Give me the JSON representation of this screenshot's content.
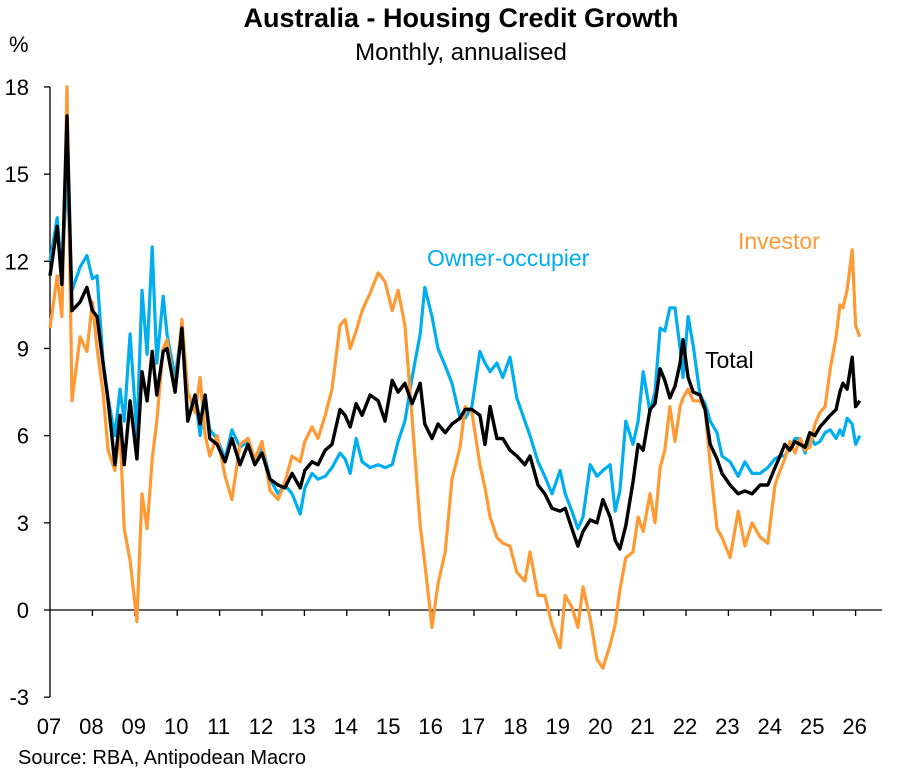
{
  "chart_data": {
    "type": "line",
    "title": "Australia - Housing Credit Growth",
    "subtitle": "Monthly, annualised",
    "ylabel": "%",
    "xlabel": "",
    "source": "Source: RBA, Antipodean Macro",
    "ylim": [
      -3,
      18
    ],
    "yticks": [
      "18",
      "15",
      "12",
      "9",
      "6",
      "3",
      "0",
      "-3"
    ],
    "ytick_values": [
      18,
      15,
      12,
      9,
      6,
      3,
      0,
      -3
    ],
    "xticks": [
      "07",
      "08",
      "09",
      "10",
      "11",
      "12",
      "13",
      "14",
      "15",
      "16",
      "17",
      "18",
      "19",
      "20",
      "21",
      "22",
      "23",
      "24",
      "25",
      "26"
    ],
    "xlim": [
      2007,
      2026
    ],
    "grid": false,
    "legend": "inline labels",
    "x": [
      2007.0,
      2007.17,
      2007.28,
      2007.4,
      2007.52,
      2007.71,
      2007.87,
      2008.0,
      2008.11,
      2008.25,
      2008.37,
      2008.53,
      2008.65,
      2008.75,
      2008.89,
      2009.05,
      2009.17,
      2009.29,
      2009.41,
      2009.52,
      2009.67,
      2009.76,
      2009.95,
      2010.11,
      2010.25,
      2010.42,
      2010.54,
      2010.66,
      2010.77,
      2010.94,
      2011.13,
      2011.29,
      2011.48,
      2011.67,
      2011.83,
      2012.0,
      2012.19,
      2012.38,
      2012.54,
      2012.71,
      2012.9,
      2013.01,
      2013.18,
      2013.32,
      2013.49,
      2013.65,
      2013.84,
      2013.96,
      2014.08,
      2014.22,
      2014.36,
      2014.55,
      2014.74,
      2014.9,
      2015.07,
      2015.21,
      2015.37,
      2015.54,
      2015.73,
      2015.84,
      2016.01,
      2016.15,
      2016.32,
      2016.48,
      2016.67,
      2016.79,
      2016.95,
      2017.14,
      2017.26,
      2017.38,
      2017.54,
      2017.68,
      2017.85,
      2018.01,
      2018.2,
      2018.32,
      2018.51,
      2018.67,
      2018.84,
      2019.03,
      2019.15,
      2019.31,
      2019.45,
      2019.57,
      2019.74,
      2019.9,
      2020.04,
      2020.21,
      2020.33,
      2020.44,
      2020.58,
      2020.75,
      2020.87,
      2020.99,
      2021.15,
      2021.27,
      2021.39,
      2021.5,
      2021.62,
      2021.74,
      2021.86,
      2021.93,
      2022.05,
      2022.17,
      2022.33,
      2022.45,
      2022.57,
      2022.73,
      2022.85,
      2023.04,
      2023.23,
      2023.39,
      2023.56,
      2023.75,
      2023.93,
      2024.1,
      2024.22,
      2024.33,
      2024.45,
      2024.57,
      2024.69,
      2024.81,
      2024.92,
      2025.04,
      2025.16,
      2025.28,
      2025.4,
      2025.54,
      2025.63,
      2025.7,
      2025.8,
      2025.92,
      2026.0,
      2026.1
    ],
    "series": [
      {
        "name": "Owner-occupier",
        "color": "#00AEEF",
        "values": [
          12.0,
          13.5,
          11.5,
          15.0,
          11.0,
          11.8,
          12.2,
          11.4,
          11.5,
          8.6,
          7.3,
          6.0,
          7.6,
          6.5,
          9.5,
          6.0,
          11.0,
          8.8,
          12.5,
          8.5,
          10.8,
          9.5,
          8.0,
          9.7,
          6.5,
          7.4,
          6.0,
          7.3,
          6.2,
          5.9,
          5.2,
          6.2,
          5.6,
          5.8,
          5.0,
          5.7,
          4.5,
          4.0,
          4.3,
          4.0,
          3.3,
          4.2,
          4.7,
          4.5,
          4.6,
          4.9,
          5.4,
          5.2,
          4.7,
          5.9,
          5.1,
          4.9,
          5.0,
          4.9,
          5.0,
          5.8,
          6.5,
          8.0,
          9.5,
          11.1,
          10.1,
          9.0,
          8.4,
          7.8,
          6.6,
          6.6,
          7.0,
          8.9,
          8.5,
          8.2,
          8.5,
          8.0,
          8.7,
          7.3,
          6.5,
          6.0,
          5.1,
          4.6,
          4.0,
          4.8,
          4.0,
          3.4,
          2.8,
          3.2,
          5.0,
          4.6,
          4.8,
          5.0,
          3.4,
          4.1,
          6.5,
          5.7,
          6.5,
          8.2,
          6.8,
          7.5,
          9.7,
          9.6,
          10.4,
          10.4,
          9.0,
          8.0,
          10.1,
          9.1,
          7.4,
          7.1,
          6.5,
          6.1,
          5.3,
          5.1,
          4.6,
          5.1,
          4.7,
          4.7,
          4.9,
          5.2,
          5.3,
          5.3,
          5.6,
          5.9,
          5.9,
          5.4,
          6.0,
          5.7,
          5.8,
          6.1,
          6.2,
          5.9,
          6.2,
          6.0,
          6.6,
          6.4,
          5.7,
          6.0
        ]
      },
      {
        "name": "Investor",
        "color": "#FF9933",
        "values": [
          9.7,
          11.5,
          10.1,
          18.0,
          7.2,
          9.4,
          8.9,
          10.6,
          9.0,
          7.5,
          5.5,
          4.8,
          6.2,
          2.8,
          1.7,
          -0.4,
          4.0,
          2.8,
          5.2,
          6.5,
          9.0,
          9.3,
          7.5,
          10.0,
          7.5,
          6.8,
          8.0,
          6.0,
          5.3,
          6.0,
          4.6,
          3.8,
          5.7,
          5.9,
          5.2,
          5.8,
          4.1,
          3.8,
          4.4,
          5.3,
          5.1,
          5.8,
          6.3,
          5.9,
          6.7,
          7.6,
          9.8,
          10.0,
          9.0,
          9.6,
          10.3,
          10.9,
          11.6,
          11.3,
          10.3,
          11.0,
          9.8,
          6.6,
          2.9,
          1.6,
          -0.6,
          0.9,
          2.0,
          4.5,
          5.6,
          7.0,
          6.8,
          5.0,
          4.2,
          3.2,
          2.5,
          2.3,
          2.2,
          1.3,
          1.0,
          2.0,
          0.5,
          0.5,
          -0.5,
          -1.3,
          0.5,
          0.1,
          -0.6,
          0.8,
          -0.3,
          -1.7,
          -2.0,
          -1.2,
          -0.5,
          0.7,
          1.8,
          2.0,
          3.2,
          2.7,
          4.0,
          3.0,
          4.9,
          5.5,
          7.0,
          5.8,
          7.0,
          7.3,
          7.6,
          7.2,
          7.2,
          6.9,
          5.0,
          2.8,
          2.5,
          1.8,
          3.4,
          2.2,
          3.0,
          2.5,
          2.3,
          4.3,
          4.8,
          5.2,
          5.8,
          5.4,
          5.9,
          5.5,
          5.6,
          6.4,
          6.8,
          7.0,
          8.3,
          9.4,
          10.5,
          10.4,
          11.0,
          12.4,
          9.8,
          9.4
        ]
      },
      {
        "name": "Total",
        "color": "#000000",
        "values": [
          11.5,
          13.2,
          11.2,
          17.0,
          10.3,
          10.6,
          11.1,
          10.3,
          10.1,
          8.5,
          7.2,
          5.0,
          6.7,
          5.0,
          7.2,
          5.2,
          8.2,
          7.2,
          8.9,
          7.4,
          8.9,
          9.0,
          7.5,
          9.7,
          6.5,
          7.4,
          6.4,
          7.4,
          5.9,
          5.7,
          5.1,
          5.9,
          5.0,
          5.7,
          5.0,
          5.4,
          4.5,
          4.3,
          4.2,
          4.7,
          4.2,
          4.8,
          5.1,
          5.0,
          5.5,
          5.7,
          6.9,
          6.7,
          6.3,
          7.1,
          6.7,
          7.4,
          7.2,
          6.5,
          7.9,
          7.5,
          7.8,
          7.1,
          7.8,
          6.4,
          5.9,
          6.4,
          6.1,
          6.4,
          6.6,
          6.9,
          6.9,
          6.7,
          5.7,
          7.0,
          5.9,
          5.9,
          5.5,
          5.3,
          5.0,
          5.3,
          4.3,
          4.0,
          3.5,
          3.4,
          3.5,
          2.8,
          2.2,
          2.7,
          3.1,
          3.0,
          3.8,
          3.2,
          2.4,
          2.1,
          2.9,
          4.4,
          5.7,
          5.5,
          6.9,
          7.1,
          8.3,
          7.9,
          7.3,
          7.7,
          8.5,
          9.3,
          8.0,
          7.5,
          7.4,
          6.9,
          5.7,
          5.2,
          4.7,
          4.3,
          4.0,
          4.1,
          4.0,
          4.3,
          4.3,
          4.9,
          5.3,
          5.7,
          5.5,
          5.8,
          5.7,
          5.6,
          6.1,
          6.0,
          6.3,
          6.5,
          6.7,
          6.9,
          7.5,
          7.8,
          7.6,
          8.7,
          7.0,
          7.2
        ]
      }
    ]
  }
}
